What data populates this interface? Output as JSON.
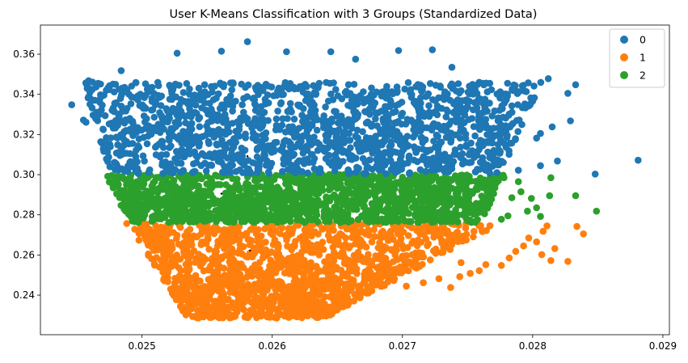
{
  "chart_data": {
    "type": "scatter",
    "title": "User K-Means Classification with 3 Groups (Standardized Data)",
    "xlabel": "",
    "ylabel": "",
    "xlim": [
      0.02422,
      0.02905
    ],
    "ylim": [
      0.2203,
      0.3745
    ],
    "xticks": [
      0.025,
      0.026,
      0.027,
      0.028,
      0.029
    ],
    "xtick_labels": [
      "0.025",
      "0.026",
      "0.027",
      "0.028",
      "0.029"
    ],
    "yticks": [
      0.24,
      0.26,
      0.28,
      0.3,
      0.32,
      0.34,
      0.36
    ],
    "ytick_labels": [
      "0.24",
      "0.26",
      "0.28",
      "0.30",
      "0.32",
      "0.34",
      "0.36"
    ],
    "grid": false,
    "legend": {
      "placement": "top-right"
    },
    "series": [
      {
        "name": "0",
        "color": "#1f77b4",
        "region": {
          "y_min": 0.3005,
          "y_max": 0.346,
          "x_left_at_y_min": 0.02475,
          "x_left_at_y_max": 0.02455,
          "x_right_at_y_min": 0.02775,
          "x_right_at_y_max": 0.0281
        },
        "outliers": [
          [
            0.02581,
            0.3662
          ],
          [
            0.02561,
            0.3615
          ],
          [
            0.02527,
            0.3605
          ],
          [
            0.02611,
            0.3612
          ],
          [
            0.02645,
            0.3612
          ],
          [
            0.02723,
            0.3622
          ],
          [
            0.02697,
            0.3618
          ],
          [
            0.02664,
            0.3575
          ],
          [
            0.02738,
            0.3535
          ],
          [
            0.02484,
            0.3518
          ],
          [
            0.02446,
            0.3348
          ],
          [
            0.02455,
            0.3272
          ],
          [
            0.02459,
            0.3468
          ],
          [
            0.02462,
            0.3461
          ],
          [
            0.02457,
            0.3261
          ],
          [
            0.02812,
            0.3478
          ],
          [
            0.02833,
            0.3448
          ],
          [
            0.02827,
            0.3405
          ],
          [
            0.02829,
            0.3268
          ],
          [
            0.02797,
            0.3342
          ],
          [
            0.02815,
            0.3238
          ],
          [
            0.02806,
            0.3205
          ],
          [
            0.02775,
            0.3218
          ],
          [
            0.02803,
            0.3182
          ],
          [
            0.02819,
            0.3068
          ],
          [
            0.02806,
            0.3045
          ],
          [
            0.02789,
            0.3022
          ],
          [
            0.02848,
            0.3003
          ],
          [
            0.02881,
            0.3072
          ],
          [
            0.02769,
            0.3158
          ],
          [
            0.02782,
            0.3302
          ],
          [
            0.02761,
            0.3305
          ],
          [
            0.02794,
            0.3352
          ],
          [
            0.02745,
            0.3418
          ],
          [
            0.02749,
            0.3372
          ],
          [
            0.02688,
            0.3338
          ]
        ]
      },
      {
        "name": "1",
        "color": "#ff7f0e",
        "region": {
          "y_min": 0.2285,
          "y_max": 0.2758,
          "x_left_at_y_min": 0.02535,
          "x_left_at_y_max": 0.02488,
          "x_right_at_y_min": 0.0264,
          "x_right_at_y_max": 0.02775
        },
        "outliers": [
          [
            0.02834,
            0.2742
          ],
          [
            0.02839,
            0.2705
          ],
          [
            0.02811,
            0.2745
          ],
          [
            0.02808,
            0.2718
          ],
          [
            0.02797,
            0.2685
          ],
          [
            0.02803,
            0.2665
          ],
          [
            0.02793,
            0.2645
          ],
          [
            0.02787,
            0.2618
          ],
          [
            0.02807,
            0.2602
          ],
          [
            0.02817,
            0.2632
          ],
          [
            0.02814,
            0.2572
          ],
          [
            0.02827,
            0.2568
          ],
          [
            0.02782,
            0.2585
          ],
          [
            0.02764,
            0.2552
          ],
          [
            0.02759,
            0.2522
          ],
          [
            0.02752,
            0.2508
          ],
          [
            0.02744,
            0.2492
          ],
          [
            0.02728,
            0.2482
          ],
          [
            0.02737,
            0.2438
          ],
          [
            0.02716,
            0.2462
          ],
          [
            0.02703,
            0.2445
          ],
          [
            0.02776,
            0.2548
          ],
          [
            0.02745,
            0.2562
          ]
        ]
      },
      {
        "name": "2",
        "color": "#2ca02c",
        "region": {
          "y_min": 0.2762,
          "y_max": 0.3002,
          "x_left_at_y_min": 0.0249,
          "x_left_at_y_max": 0.02472,
          "x_right_at_y_min": 0.0276,
          "x_right_at_y_max": 0.02778
        },
        "outliers": [
          [
            0.02849,
            0.2818
          ],
          [
            0.02833,
            0.2895
          ],
          [
            0.02813,
            0.2895
          ],
          [
            0.02814,
            0.2985
          ],
          [
            0.02803,
            0.2835
          ],
          [
            0.02796,
            0.2818
          ],
          [
            0.02781,
            0.2795
          ],
          [
            0.02776,
            0.2778
          ],
          [
            0.02791,
            0.2915
          ],
          [
            0.02789,
            0.2965
          ],
          [
            0.02778,
            0.2985
          ],
          [
            0.02771,
            0.2935
          ],
          [
            0.02799,
            0.2882
          ],
          [
            0.02767,
            0.2855
          ],
          [
            0.02806,
            0.2792
          ],
          [
            0.02784,
            0.2885
          ]
        ]
      }
    ],
    "centroids": [
      {
        "cluster": "0",
        "x": 0.02581,
        "y": 0.3092
      },
      {
        "cluster": "2",
        "x": 0.02561,
        "y": 0.2905
      },
      {
        "cluster": "1",
        "x": 0.02583,
        "y": 0.2622
      }
    ]
  }
}
